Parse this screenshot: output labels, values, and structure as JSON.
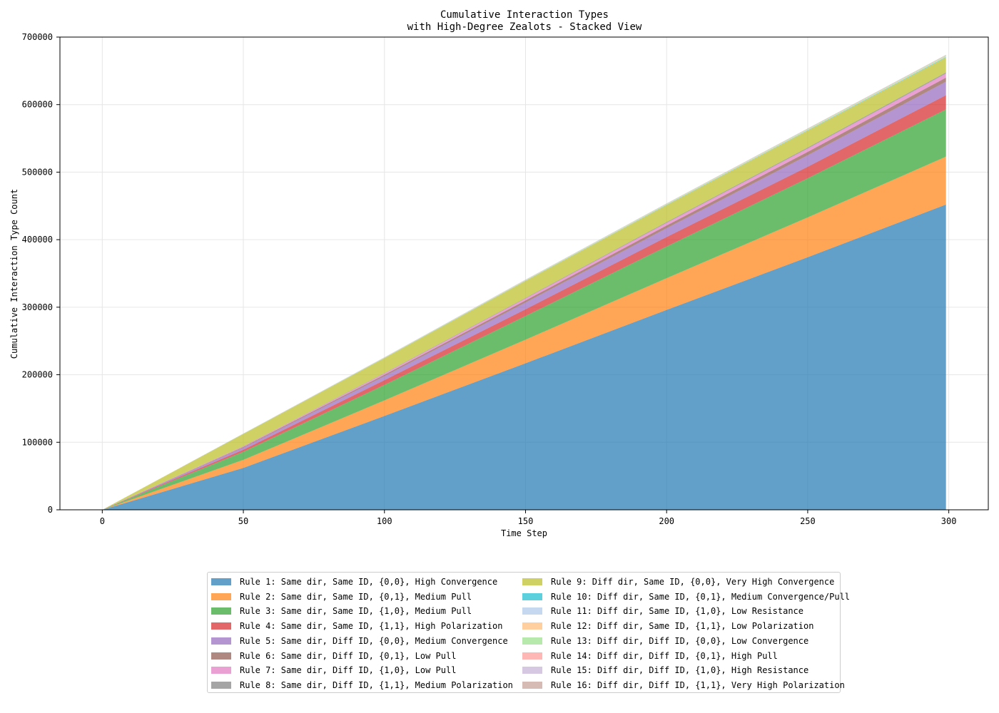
{
  "chart_data": {
    "type": "area",
    "stacked": true,
    "title": [
      "Cumulative Interaction Types",
      "with High-Degree Zealots - Stacked View"
    ],
    "xlabel": "Time Step",
    "ylabel": "Cumulative Interaction Type Count",
    "xlim": [
      -15,
      314
    ],
    "ylim": [
      0,
      700000
    ],
    "xticks": [
      0,
      50,
      100,
      150,
      200,
      250,
      300
    ],
    "yticks": [
      0,
      100000,
      200000,
      300000,
      400000,
      500000,
      600000,
      700000
    ],
    "grid": true,
    "legend_placement": "bottom-center, 2 columns",
    "x": [
      0,
      50,
      100,
      150,
      200,
      250,
      299
    ],
    "series": [
      {
        "name": "Rule 1: Same dir, Same ID, {0,0}, High Convergence",
        "color": "#1f77b4",
        "values": [
          0,
          62000,
          139000,
          217000,
          296000,
          374000,
          452000
        ]
      },
      {
        "name": "Rule 2: Same dir, Same ID, {0,1}, Medium Pull",
        "color": "#ff7f0e",
        "values": [
          0,
          12000,
          23000,
          35000,
          47000,
          59000,
          71000
        ]
      },
      {
        "name": "Rule 3: Same dir, Same ID, {1,0}, Medium Pull",
        "color": "#2ca02c",
        "values": [
          0,
          12000,
          23000,
          35000,
          47000,
          58000,
          70000
        ]
      },
      {
        "name": "Rule 4: Same dir, Same ID, {1,1}, High Polarization",
        "color": "#d62728",
        "values": [
          0,
          3000,
          7000,
          10000,
          14000,
          17000,
          21000
        ]
      },
      {
        "name": "Rule 5: Same dir, Diff ID, {0,0}, Medium Convergence",
        "color": "#9467bd",
        "values": [
          0,
          3000,
          6000,
          10000,
          13000,
          17000,
          20000
        ]
      },
      {
        "name": "Rule 6: Same dir, Diff ID, {0,1}, Low Pull",
        "color": "#8c564b",
        "values": [
          0,
          1000,
          2000,
          3000,
          4000,
          5000,
          6000
        ]
      },
      {
        "name": "Rule 7: Same dir, Diff ID, {1,0}, Low Pull",
        "color": "#e377c2",
        "values": [
          0,
          1000,
          2000,
          3000,
          4000,
          5000,
          6000
        ]
      },
      {
        "name": "Rule 8: Same dir, Diff ID, {1,1}, Medium Polarization",
        "color": "#7f7f7f",
        "values": [
          0,
          300,
          600,
          900,
          1200,
          1500,
          1800
        ]
      },
      {
        "name": "Rule 9: Diff dir, Same ID, {0,0}, Very High Convergence",
        "color": "#bcbd22",
        "values": [
          0,
          18000,
          22000,
          25000,
          25000,
          25000,
          22000
        ]
      },
      {
        "name": "Rule 10: Diff dir, Same ID, {0,1}, Medium Convergence/Pull",
        "color": "#17becf",
        "values": [
          0,
          100,
          200,
          300,
          400,
          500,
          600
        ]
      },
      {
        "name": "Rule 11: Diff dir, Same ID, {1,0}, Low Resistance",
        "color": "#aec7e8",
        "values": [
          0,
          100,
          200,
          300,
          400,
          500,
          600
        ]
      },
      {
        "name": "Rule 12: Diff dir, Same ID, {1,1}, Low Polarization",
        "color": "#ffbb78",
        "values": [
          0,
          100,
          200,
          300,
          400,
          500,
          600
        ]
      },
      {
        "name": "Rule 13: Diff dir, Diff ID, {0,0}, Low Convergence",
        "color": "#98df8a",
        "values": [
          0,
          200,
          400,
          600,
          800,
          1000,
          1200
        ]
      },
      {
        "name": "Rule 14: Diff dir, Diff ID, {0,1}, High Pull",
        "color": "#ff9896",
        "values": [
          0,
          50,
          100,
          150,
          200,
          250,
          300
        ]
      },
      {
        "name": "Rule 15: Diff dir, Diff ID, {1,0}, High Resistance",
        "color": "#c5b0d5",
        "values": [
          0,
          50,
          100,
          150,
          200,
          250,
          300
        ]
      },
      {
        "name": "Rule 16: Diff dir, Diff ID, {1,1}, Very High Polarization",
        "color": "#c49c94",
        "values": [
          0,
          50,
          100,
          150,
          200,
          250,
          300
        ]
      }
    ]
  }
}
